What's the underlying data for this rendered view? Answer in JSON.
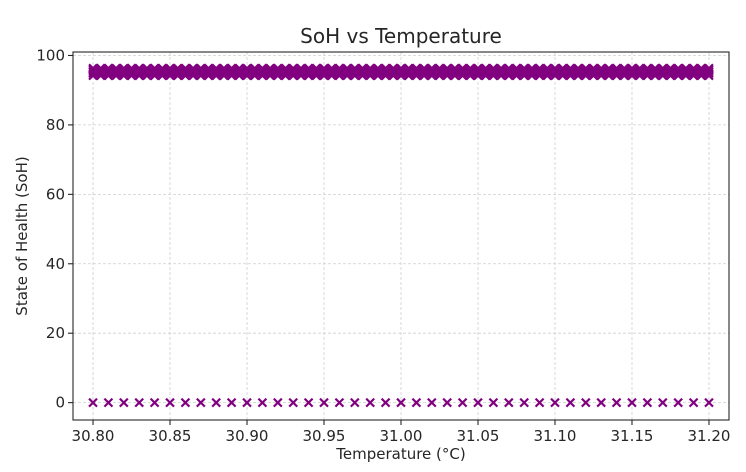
{
  "chart_data": {
    "type": "scatter",
    "title": "SoH vs Temperature",
    "xlabel": "Temperature (°C)",
    "ylabel": "State of Health (SoH)",
    "xlim": [
      30.787,
      31.213
    ],
    "ylim": [
      -5,
      101
    ],
    "xticks": [
      30.8,
      30.85,
      30.9,
      30.95,
      31.0,
      31.05,
      31.1,
      31.15,
      31.2
    ],
    "xtick_labels": [
      "30.80",
      "30.85",
      "30.90",
      "30.95",
      "31.00",
      "31.05",
      "31.10",
      "31.15",
      "31.20"
    ],
    "yticks": [
      0,
      20,
      40,
      60,
      80,
      100
    ],
    "ytick_labels": [
      "0",
      "20",
      "40",
      "60",
      "80",
      "100"
    ],
    "grid": true,
    "marker": "x",
    "color": "#800080",
    "series": [
      {
        "x_start": 30.8,
        "x_end": 31.2,
        "x_step": 0.005,
        "y_high_band": [
          94.2,
          94.8,
          95.3,
          95.8,
          96.3
        ],
        "y_low": 0
      }
    ]
  }
}
